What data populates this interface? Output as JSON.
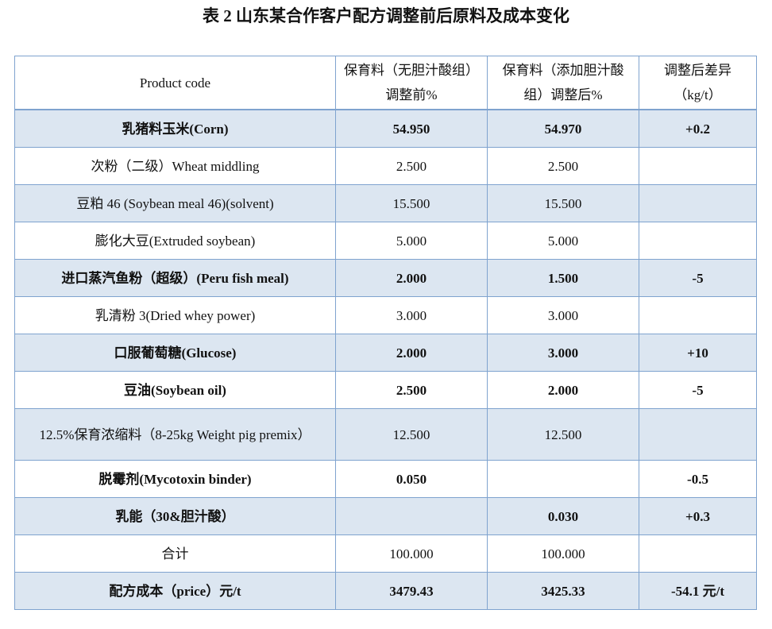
{
  "title": "表  2  山东某合作客户配方调整前后原料及成本变化",
  "table": {
    "header": [
      "Product code",
      "保育料（无胆汁酸组）调整前%",
      "保育料（添加胆汁酸组）调整后%",
      "调整后差异（kg/t）"
    ],
    "rows": [
      [
        "乳猪料玉米(Corn)",
        "54.950",
        "54.970",
        "+0.2"
      ],
      [
        "次粉（二级）Wheat middling",
        "2.500",
        "2.500",
        null
      ],
      [
        "豆粕 46 (Soybean meal 46)(solvent)",
        "15.500",
        "15.500",
        null
      ],
      [
        "膨化大豆(Extruded soybean)",
        "5.000",
        "5.000",
        null
      ],
      [
        "进口蒸汽鱼粉（超级）(Peru fish meal)",
        "2.000",
        "1.500",
        "-5"
      ],
      [
        "乳清粉 3(Dried whey power)",
        "3.000",
        "3.000",
        null
      ],
      [
        "口服葡萄糖(Glucose)",
        "2.000",
        "3.000",
        "+10"
      ],
      [
        "豆油(Soybean oil)",
        "2.500",
        "2.000",
        "-5"
      ],
      [
        "12.5%保育浓缩料（8-25kg Weight pig premix）",
        "12.500",
        "12.500",
        null
      ],
      [
        "脱霉剂(Mycotoxin binder)",
        "0.050",
        null,
        "-0.5"
      ],
      [
        "乳能（30&胆汁酸）",
        null,
        "0.030",
        "+0.3"
      ],
      [
        "合计",
        "100.000",
        "100.000",
        null
      ],
      [
        "配方成本（price）元/t",
        "3479.43",
        "3425.33",
        "-54.1 元/t"
      ]
    ]
  }
}
